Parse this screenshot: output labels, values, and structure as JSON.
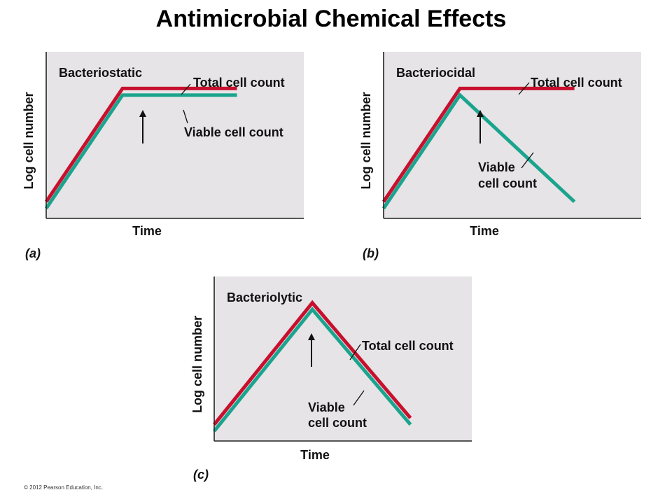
{
  "title": "Antimicrobial Chemical Effects",
  "copyright": "© 2012 Pearson Education, Inc.",
  "colors": {
    "total": "#c8102e",
    "viable": "#1aa48e",
    "plot_background": "#e6e4e6"
  },
  "chart_data": [
    {
      "type": "line",
      "panel": "(a)",
      "title": "Bacteriostatic",
      "xlabel": "Time",
      "ylabel": "Log cell number",
      "ticks": false,
      "arrow_x": 4,
      "series": [
        {
          "name": "Total cell count",
          "x": [
            0,
            4,
            10
          ],
          "y": [
            1,
            7.8,
            7.8
          ]
        },
        {
          "name": "Viable cell count",
          "x": [
            0,
            4,
            10
          ],
          "y": [
            0.6,
            7.4,
            7.4
          ]
        }
      ],
      "labels": [
        {
          "text": [
            "Total cell count"
          ],
          "series": 0
        },
        {
          "text": [
            "Viable cell count"
          ],
          "series": 1
        }
      ]
    },
    {
      "type": "line",
      "panel": "(b)",
      "title": "Bacteriocidal",
      "xlabel": "Time",
      "ylabel": "Log cell number",
      "ticks": false,
      "arrow_x": 4,
      "series": [
        {
          "name": "Total cell count",
          "x": [
            0,
            4,
            10
          ],
          "y": [
            1,
            7.8,
            7.8
          ]
        },
        {
          "name": "Viable cell count",
          "x": [
            0,
            4,
            10
          ],
          "y": [
            0.6,
            7.4,
            1
          ]
        }
      ],
      "labels": [
        {
          "text": [
            "Total cell count"
          ],
          "series": 0
        },
        {
          "text": [
            "Viable",
            "cell count"
          ],
          "series": 1
        }
      ]
    },
    {
      "type": "line",
      "panel": "(c)",
      "title": "Bacteriolytic",
      "xlabel": "Time",
      "ylabel": "Log cell number",
      "ticks": false,
      "arrow_x": 4,
      "series": [
        {
          "name": "Total cell count",
          "x": [
            0,
            4,
            8
          ],
          "y": [
            1,
            8.4,
            1.4
          ]
        },
        {
          "name": "Viable cell count",
          "x": [
            0,
            4,
            8
          ],
          "y": [
            0.6,
            8.0,
            1.0
          ]
        }
      ],
      "labels": [
        {
          "text": [
            "Total cell count"
          ],
          "series": 0
        },
        {
          "text": [
            "Viable",
            "cell count"
          ],
          "series": 1
        }
      ]
    }
  ]
}
